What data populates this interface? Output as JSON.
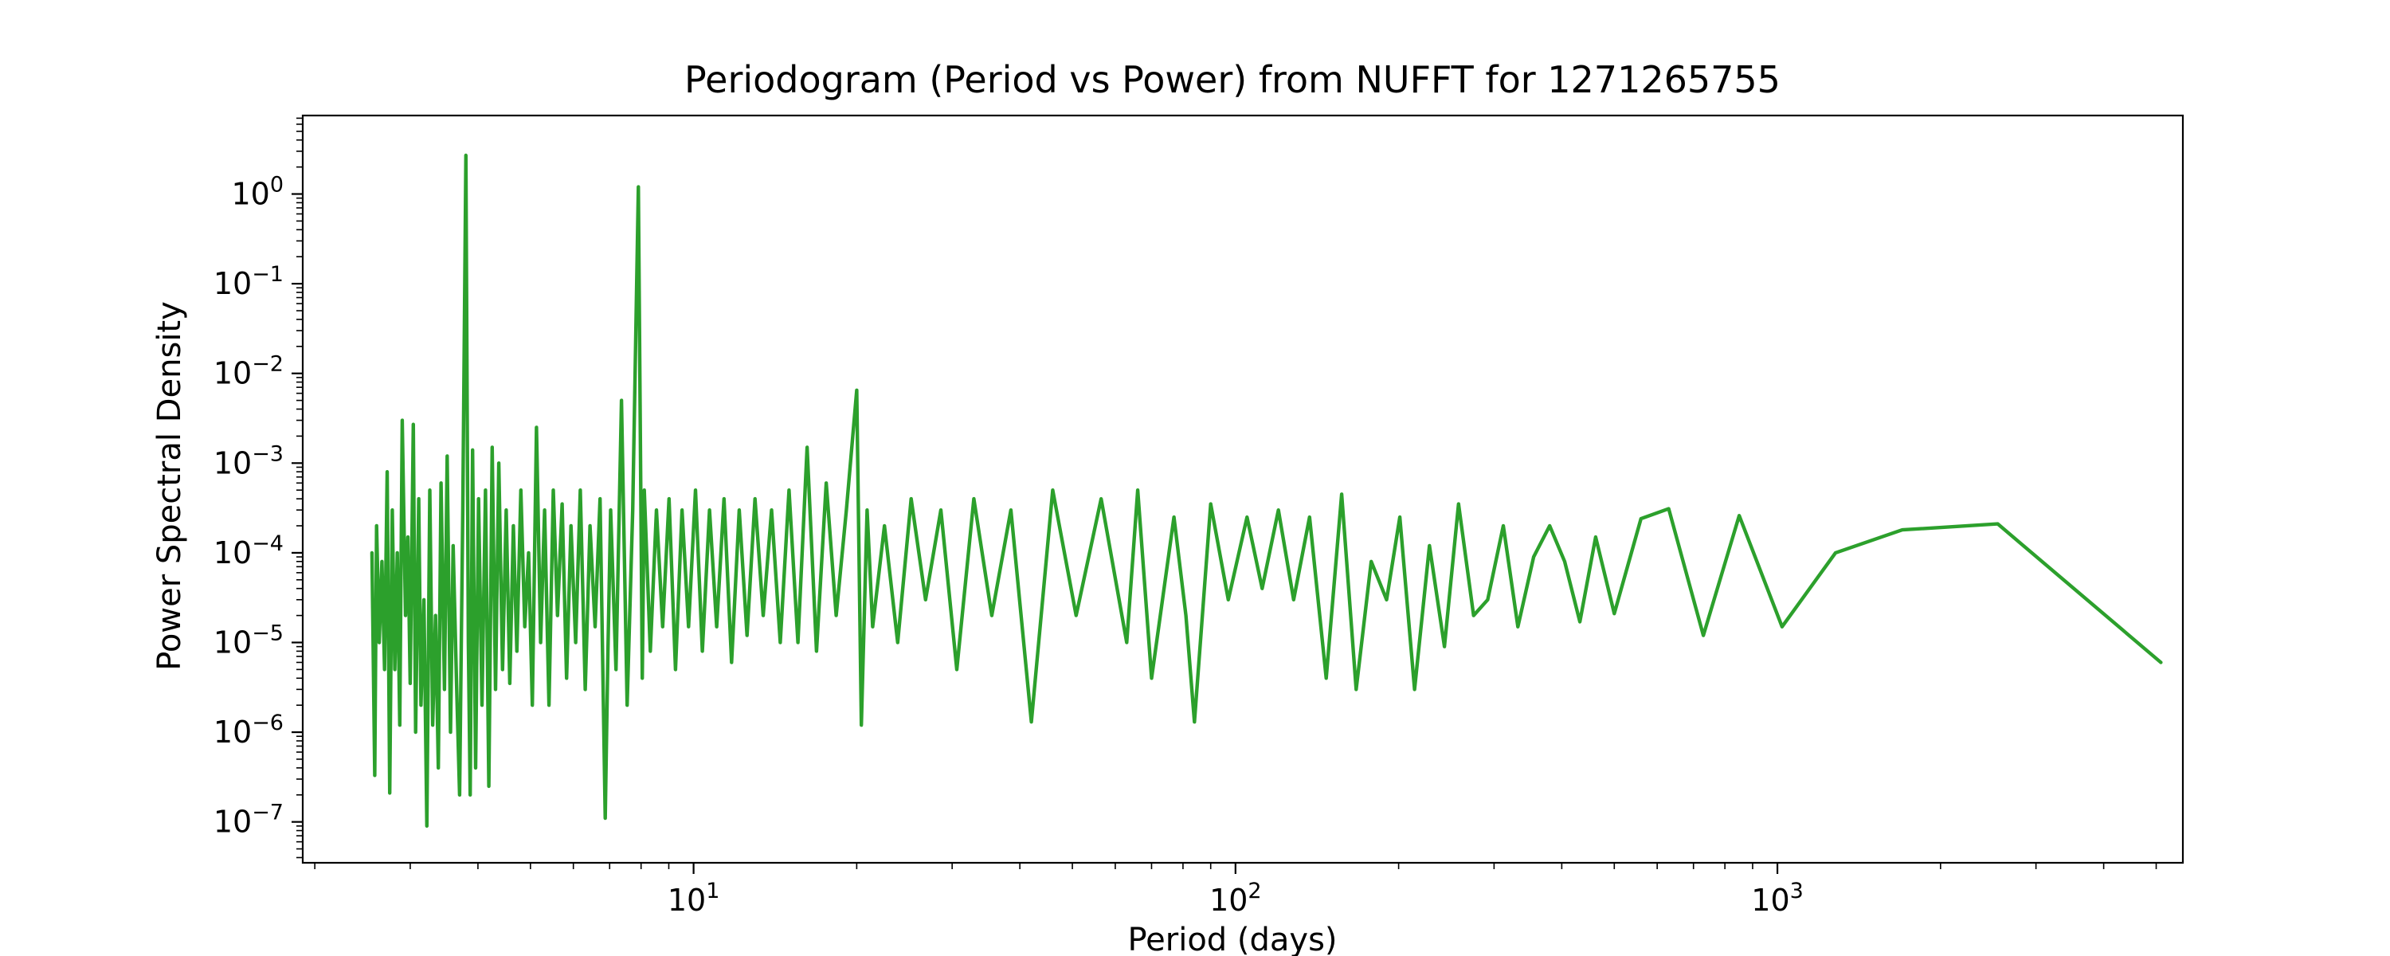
{
  "chart_data": {
    "type": "line",
    "title": "Periodogram (Period vs Power) from NUFFT for 1271265755",
    "xlabel": "Period (days)",
    "ylabel": "Power Spectral Density",
    "xscale": "log",
    "yscale": "log",
    "xlim": [
      1.9,
      5600
    ],
    "ylim": [
      3.5e-08,
      7.5
    ],
    "grid": false,
    "line_color": "#2ca02c",
    "x_ticks": [
      {
        "value": 10,
        "base": "10",
        "exp": "1"
      },
      {
        "value": 100,
        "base": "10",
        "exp": "2"
      },
      {
        "value": 1000,
        "base": "10",
        "exp": "3"
      }
    ],
    "y_ticks": [
      {
        "value": 1,
        "base": "10",
        "exp": "0"
      },
      {
        "value": 0.1,
        "base": "10",
        "exp": "−1"
      },
      {
        "value": 0.01,
        "base": "10",
        "exp": "−2"
      },
      {
        "value": 0.001,
        "base": "10",
        "exp": "−3"
      },
      {
        "value": 0.0001,
        "base": "10",
        "exp": "−4"
      },
      {
        "value": 1e-05,
        "base": "10",
        "exp": "−5"
      },
      {
        "value": 1e-06,
        "base": "10",
        "exp": "−6"
      },
      {
        "value": 1e-07,
        "base": "10",
        "exp": "−7"
      }
    ],
    "series": [
      {
        "x": [
          2.55,
          2.58,
          2.6,
          2.63,
          2.66,
          2.69,
          2.72,
          2.75,
          2.78,
          2.81,
          2.84,
          2.87,
          2.9,
          2.94,
          2.97,
          3.0,
          3.04,
          3.07,
          3.11,
          3.14,
          3.18,
          3.22,
          3.26,
          3.3,
          3.34,
          3.38,
          3.42,
          3.47,
          3.51,
          3.56,
          3.6,
          3.65,
          3.7,
          3.75,
          3.8,
          3.84,
          3.87,
          3.91,
          3.96,
          4.01,
          4.07,
          4.13,
          4.19,
          4.25,
          4.31,
          4.37,
          4.44,
          4.51,
          4.58,
          4.65,
          4.72,
          4.8,
          4.88,
          4.96,
          5.04,
          5.13,
          5.22,
          5.31,
          5.41,
          5.51,
          5.61,
          5.72,
          5.83,
          5.94,
          6.06,
          6.18,
          6.31,
          6.44,
          6.58,
          6.72,
          6.87,
          6.95,
          7.03,
          7.19,
          7.36,
          7.54,
          7.72,
          7.91,
          8.04,
          8.11,
          8.32,
          8.54,
          8.77,
          9.01,
          9.26,
          9.52,
          9.79,
          10.08,
          10.38,
          10.7,
          11.03,
          11.38,
          11.75,
          12.14,
          12.55,
          12.98,
          13.44,
          13.93,
          14.45,
          15.0,
          15.58,
          16.2,
          16.86,
          17.57,
          18.33,
          19.14,
          20.0,
          20.4,
          20.9,
          21.4,
          22.5,
          23.8,
          25.2,
          26.8,
          28.6,
          30.6,
          32.9,
          35.5,
          38.5,
          42.0,
          46.0,
          50.8,
          56.5,
          63.0,
          66.0,
          70.0,
          77.0,
          81.0,
          84.0,
          90.0,
          97.0,
          105,
          112,
          120,
          128,
          137,
          147,
          157,
          167,
          178,
          190,
          201,
          214,
          228,
          243,
          258,
          275,
          292,
          312,
          332,
          355,
          380,
          405,
          432,
          462,
          500,
          560,
          630,
          730,
          850,
          1020,
          1280,
          1700,
          2550,
          5100
        ],
        "y": [
          0.0001,
          3.3e-07,
          0.0002,
          1e-05,
          8e-05,
          5e-06,
          0.0008,
          2.1e-07,
          0.0003,
          5e-06,
          0.0001,
          1.2e-06,
          0.003,
          2e-05,
          0.00015,
          3.5e-06,
          0.0027,
          1e-06,
          0.0004,
          2e-06,
          3e-05,
          9e-08,
          0.0005,
          1.2e-06,
          2e-05,
          4e-07,
          0.0006,
          3e-06,
          0.0012,
          1e-06,
          0.00012,
          4e-06,
          2e-07,
          0.0003,
          2.7,
          1e-05,
          2e-07,
          0.0014,
          4e-07,
          0.0004,
          2e-06,
          0.0005,
          2.5e-07,
          0.0015,
          3e-06,
          0.001,
          5e-06,
          0.0003,
          3.5e-06,
          0.0002,
          8e-06,
          0.0005,
          1.5e-05,
          0.0001,
          2e-06,
          0.0025,
          1e-05,
          0.0003,
          2e-06,
          0.0005,
          2e-05,
          0.00035,
          4e-06,
          0.0002,
          1e-05,
          0.0005,
          3e-06,
          0.0002,
          1.5e-05,
          0.0004,
          1.1e-07,
          8e-06,
          0.0003,
          5e-06,
          0.005,
          2e-06,
          0.0003,
          1.2,
          4e-06,
          0.0005,
          8e-06,
          0.0003,
          1.5e-05,
          0.0004,
          5e-06,
          0.0003,
          1.5e-05,
          0.0005,
          8e-06,
          0.0003,
          1.5e-05,
          0.0004,
          6e-06,
          0.0003,
          1.2e-05,
          0.0004,
          2e-05,
          0.0003,
          1e-05,
          0.0005,
          1e-05,
          0.0015,
          8e-06,
          0.0006,
          2e-05,
          0.0003,
          0.0065,
          1.2e-06,
          0.0003,
          1.5e-05,
          0.0002,
          1e-05,
          0.0004,
          3e-05,
          0.0003,
          5e-06,
          0.0004,
          2e-05,
          0.0003,
          1.3e-06,
          0.0005,
          2e-05,
          0.0004,
          1e-05,
          0.0005,
          4e-06,
          0.00025,
          2e-05,
          1.3e-06,
          0.00035,
          3e-05,
          0.00025,
          4e-05,
          0.0003,
          3e-05,
          0.00025,
          4e-06,
          0.00045,
          3e-06,
          8e-05,
          3e-05,
          0.00025,
          3e-06,
          0.00012,
          9e-06,
          0.00035,
          2e-05,
          3e-05,
          0.0002,
          1.5e-05,
          9e-05,
          0.0002,
          8e-05,
          1.7e-05,
          0.00015,
          2.1e-05,
          0.00024,
          0.00031,
          1.2e-05,
          0.00026,
          1.5e-05,
          0.0001,
          0.00018,
          0.00021,
          6e-06
        ]
      }
    ]
  }
}
